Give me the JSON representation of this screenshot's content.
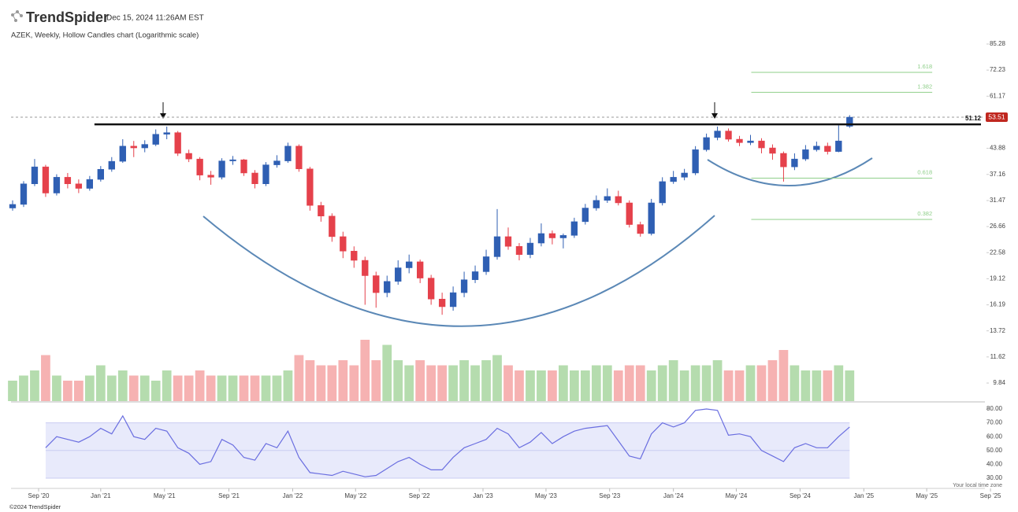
{
  "header": {
    "brand": "TrendSpider",
    "timestamp": "Dec 15, 2024 11:26AM EST"
  },
  "footer": {
    "copyright": "©2024 TrendSpider",
    "timezone": "Your local time zone"
  },
  "chart_data": {
    "type": "candlestick",
    "title": "AZEK, Weekly, Hollow Candles chart (Logarithmic scale)",
    "log_scale": true,
    "up_color": "#2f5fb3",
    "down_color": "#e5414b",
    "ylim": [
      8.77,
      90.1
    ],
    "yticks": [
      85.28,
      72.23,
      61.17,
      43.88,
      37.16,
      31.47,
      26.66,
      22.58,
      19.12,
      16.19,
      13.72,
      11.62,
      9.84
    ],
    "xlim": [
      -0.143,
      90.43
    ],
    "xticks": [
      {
        "value": 2.36,
        "label": "Sep '20"
      },
      {
        "value": 8.0,
        "label": "Jan '21"
      },
      {
        "value": 13.79,
        "label": "May '21"
      },
      {
        "value": 19.64,
        "label": "Sep '21"
      },
      {
        "value": 25.43,
        "label": "Jan '22"
      },
      {
        "value": 31.14,
        "label": "May '22"
      },
      {
        "value": 36.93,
        "label": "Sep '22"
      },
      {
        "value": 42.71,
        "label": "Jan '23"
      },
      {
        "value": 48.43,
        "label": "May '23"
      },
      {
        "value": 54.21,
        "label": "Sep '23"
      },
      {
        "value": 60.0,
        "label": "Jan '24"
      },
      {
        "value": 65.71,
        "label": "May '24"
      },
      {
        "value": 71.5,
        "label": "Sep '24"
      },
      {
        "value": 77.29,
        "label": "Jan '25"
      },
      {
        "value": 83.0,
        "label": "May '25"
      },
      {
        "value": 88.79,
        "label": "Sep '25"
      }
    ],
    "open": [
      30.0,
      30.7,
      35.0,
      39.0,
      33.0,
      36.5,
      35.0,
      34.0,
      36.0,
      38.4,
      40.4,
      44.5,
      44.0,
      45.0,
      48.0,
      48.5,
      42.5,
      41.0,
      37.0,
      36.5,
      40.5,
      40.8,
      37.5,
      35.0,
      39.5,
      40.5,
      44.5,
      38.5,
      30.5,
      28.5,
      25.0,
      22.8,
      21.5,
      19.5,
      17.5,
      18.8,
      20.5,
      21.3,
      19.2,
      16.8,
      16.0,
      17.5,
      19.0,
      20.0,
      22.0,
      25.0,
      23.5,
      22.3,
      24.0,
      25.5,
      24.8,
      25.2,
      27.5,
      30.0,
      31.5,
      32.3,
      31.0,
      27.0,
      25.5,
      31.0,
      35.5,
      36.5,
      37.5,
      43.5,
      47.0,
      49.0,
      46.5,
      45.5,
      46.0,
      44.0,
      42.5,
      39.0,
      41.0,
      43.5,
      44.5,
      43.0,
      50.5
    ],
    "high": [
      31.5,
      35.6,
      41.0,
      39.5,
      37.2,
      37.5,
      36.0,
      36.8,
      39.2,
      41.5,
      46.5,
      46.0,
      46.2,
      49.5,
      50.4,
      49.0,
      43.5,
      41.5,
      38.0,
      41.2,
      41.8,
      41.0,
      38.2,
      40.2,
      42.0,
      45.5,
      45.0,
      39.0,
      31.2,
      29.0,
      25.8,
      23.5,
      22.0,
      20.0,
      19.5,
      21.5,
      22.3,
      21.6,
      19.6,
      17.5,
      18.2,
      20.0,
      20.8,
      23.0,
      29.8,
      26.5,
      24.0,
      24.8,
      27.2,
      26.0,
      25.5,
      28.2,
      30.8,
      32.5,
      34.0,
      33.5,
      31.5,
      27.5,
      31.8,
      36.5,
      38.0,
      38.5,
      44.5,
      48.2,
      50.4,
      49.8,
      47.5,
      47.8,
      46.8,
      45.0,
      43.0,
      42.5,
      44.8,
      45.8,
      45.5,
      50.8,
      54.2
    ],
    "low": [
      29.5,
      30.2,
      34.5,
      32.2,
      32.5,
      34.0,
      33.0,
      33.5,
      35.5,
      37.8,
      40.0,
      41.5,
      42.8,
      44.5,
      46.5,
      41.8,
      40.2,
      35.8,
      34.8,
      36.0,
      39.5,
      36.8,
      34.0,
      34.5,
      38.8,
      40.0,
      37.8,
      29.5,
      27.5,
      24.2,
      21.8,
      20.5,
      16.2,
      15.9,
      17.0,
      18.4,
      19.8,
      18.6,
      16.2,
      15.2,
      15.6,
      17.0,
      18.6,
      19.6,
      21.6,
      23.0,
      21.5,
      21.8,
      23.5,
      23.8,
      23.2,
      24.8,
      27.0,
      29.5,
      31.0,
      30.5,
      26.5,
      25.0,
      25.2,
      30.5,
      35.0,
      35.8,
      37.0,
      43.0,
      46.2,
      45.8,
      44.5,
      44.8,
      42.5,
      40.8,
      35.5,
      38.2,
      40.5,
      43.0,
      42.2,
      42.8,
      50.0
    ],
    "close": [
      30.7,
      35.0,
      39.0,
      33.0,
      36.5,
      35.0,
      34.0,
      36.0,
      38.4,
      40.4,
      44.5,
      44.0,
      45.0,
      48.0,
      48.5,
      42.5,
      41.0,
      37.0,
      36.5,
      40.5,
      40.8,
      37.5,
      35.0,
      39.5,
      40.5,
      44.5,
      38.5,
      30.5,
      28.5,
      25.0,
      22.8,
      21.5,
      19.5,
      17.5,
      18.8,
      20.5,
      21.3,
      19.2,
      16.8,
      16.0,
      17.5,
      19.0,
      20.0,
      22.0,
      25.0,
      23.5,
      22.3,
      24.0,
      25.5,
      24.8,
      25.2,
      27.5,
      30.0,
      31.5,
      32.3,
      31.0,
      27.0,
      25.5,
      31.0,
      35.5,
      36.5,
      37.5,
      43.5,
      47.0,
      49.0,
      46.5,
      45.5,
      46.0,
      44.0,
      42.5,
      39.0,
      41.0,
      43.5,
      44.5,
      43.0,
      46.0,
      53.51
    ],
    "volume": {
      "up_color": "#b5dcae",
      "down_color": "#f6b2b2",
      "values": [
        4,
        5,
        6,
        9,
        5,
        4,
        4,
        5,
        7,
        5,
        6,
        5,
        5,
        4,
        6,
        5,
        5,
        6,
        5,
        5,
        5,
        5,
        5,
        5,
        5,
        6,
        9,
        8,
        7,
        7,
        8,
        7,
        12,
        8,
        11,
        8,
        7,
        8,
        7,
        7,
        7,
        8,
        7,
        8,
        9,
        7,
        6,
        6,
        6,
        6,
        7,
        6,
        6,
        7,
        7,
        6,
        7,
        7,
        6,
        7,
        8,
        6,
        7,
        7,
        8,
        6,
        6,
        7,
        7,
        8,
        10,
        7,
        6,
        6,
        6,
        7,
        6
      ]
    },
    "rsi": {
      "color": "#6a6ee0",
      "band_color": "#e8eafb",
      "band": [
        30,
        70
      ],
      "ylim": [
        28,
        82
      ],
      "yticks": [
        {
          "value": 80,
          "label": "80.00"
        },
        {
          "value": 70,
          "label": "70.00"
        },
        {
          "value": 60,
          "label": "60.00"
        },
        {
          "value": 50,
          "label": "50.00"
        },
        {
          "value": 40,
          "label": "40.00"
        },
        {
          "value": 30,
          "label": "30.00"
        }
      ],
      "values": [
        null,
        null,
        null,
        52,
        60,
        58,
        56,
        60,
        66,
        62,
        75,
        60,
        58,
        66,
        64,
        52,
        48,
        40,
        42,
        58,
        54,
        45,
        43,
        55,
        52,
        64,
        45,
        34,
        33,
        32,
        35,
        33,
        31,
        32,
        37,
        42,
        45,
        40,
        36,
        36,
        45,
        52,
        55,
        58,
        66,
        62,
        52,
        56,
        63,
        55,
        60,
        64,
        66,
        67,
        68,
        57,
        46,
        44,
        62,
        70,
        67,
        70,
        79,
        80,
        79,
        61,
        62,
        60,
        50,
        46,
        42,
        52,
        55,
        52,
        52,
        60,
        67
      ]
    },
    "resistance": {
      "value": 51.12,
      "start": 7.43,
      "color": "#111111"
    },
    "last_price": {
      "value": 53.51,
      "color": "#c0271f"
    },
    "fib_levels": {
      "color": "#8fcf8a",
      "start": 67.07,
      "end": 83.5,
      "levels": [
        {
          "ratio": 1.618,
          "price": 71.2
        },
        {
          "ratio": 1.382,
          "price": 62.7
        },
        {
          "ratio": 0.618,
          "price": 36.3
        },
        {
          "ratio": 0.382,
          "price": 27.9
        }
      ]
    }
  }
}
